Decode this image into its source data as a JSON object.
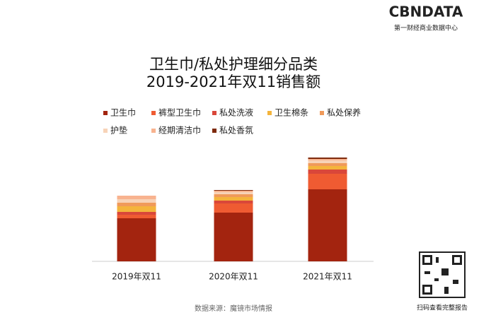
{
  "brand": {
    "logo": "CBNDATA",
    "tagline": "第一财经商业数据中心"
  },
  "chart_data": {
    "type": "stacked_bar",
    "title": "卫生巾/私处护理细分品类",
    "subtitle": "2019-2021年双11销售额",
    "categories": [
      "2019年双11",
      "2020年双11",
      "2021年双11"
    ],
    "series": [
      {
        "name": "卫生巾",
        "color": "#a3240f",
        "values": [
          61,
          69,
          102
        ]
      },
      {
        "name": "裤型卫生巾",
        "color": "#ef5b32",
        "values": [
          5,
          13,
          22
        ]
      },
      {
        "name": "私处洗液",
        "color": "#d9473a",
        "values": [
          4,
          4,
          6
        ]
      },
      {
        "name": "卫生棉条",
        "color": "#f4b43c",
        "values": [
          8,
          5,
          5
        ]
      },
      {
        "name": "私处保养",
        "color": "#f09a5a",
        "values": [
          5,
          4,
          4
        ]
      },
      {
        "name": "护垫",
        "color": "#f7d3b8",
        "values": [
          5,
          3,
          4
        ]
      },
      {
        "name": "经期清洁巾",
        "color": "#f8b38f",
        "values": [
          5,
          2,
          2
        ]
      },
      {
        "name": "私处香氛",
        "color": "#7e2a0c",
        "values": [
          0,
          1,
          2
        ]
      }
    ],
    "source": "数据来源：魔镜市场情报"
  },
  "qr_caption": "扫码查看完整报告"
}
